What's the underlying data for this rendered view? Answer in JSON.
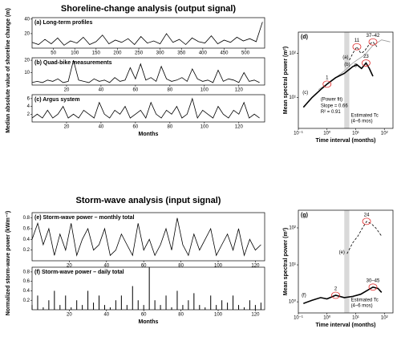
{
  "headings": [
    "Shoreline-change analysis (output  signal)",
    "Storm-wave analysis (input signal)"
  ],
  "shared_ylabels": [
    "Median absolute value of shoreline change (m)",
    "Normalized storm-wave power (kWm⁻¹)"
  ],
  "chart_data": [
    {
      "type": "line",
      "title": "(a) Long-term profiles",
      "xlim": [
        0,
        545
      ],
      "ylim": [
        0,
        42
      ],
      "xticks": [
        50,
        100,
        150,
        200,
        250,
        300,
        350,
        400,
        450,
        500
      ],
      "yticks": [
        20,
        40
      ],
      "series": [
        {
          "color": "#000000",
          "x": [
            0,
            15,
            30,
            45,
            60,
            75,
            90,
            105,
            120,
            135,
            150,
            165,
            180,
            195,
            210,
            225,
            240,
            255,
            270,
            285,
            300,
            315,
            330,
            345,
            360,
            375,
            390,
            405,
            420,
            435,
            450,
            465,
            480,
            495,
            510,
            525,
            540
          ],
          "values": [
            8,
            5,
            12,
            6,
            14,
            4,
            10,
            7,
            15,
            5,
            9,
            18,
            6,
            11,
            8,
            13,
            5,
            16,
            7,
            10,
            6,
            20,
            8,
            12,
            5,
            14,
            9,
            7,
            17,
            6,
            11,
            8,
            15,
            10,
            13,
            9,
            36
          ]
        }
      ]
    },
    {
      "type": "line",
      "title": "(b) Quad-bike measurements",
      "xlim": [
        0,
        135
      ],
      "ylim": [
        0,
        22
      ],
      "xticks": [
        20,
        40,
        60,
        80,
        100,
        120
      ],
      "yticks": [
        10,
        20
      ],
      "series": [
        {
          "color": "#000000",
          "x": [
            0,
            3,
            6,
            9,
            12,
            15,
            18,
            21,
            24,
            27,
            30,
            33,
            36,
            39,
            42,
            45,
            48,
            51,
            54,
            57,
            60,
            63,
            66,
            69,
            72,
            75,
            78,
            81,
            84,
            87,
            90,
            93,
            96,
            99,
            102,
            105,
            108,
            111,
            114,
            117,
            120,
            123,
            126,
            129,
            132
          ],
          "values": [
            2,
            3,
            2,
            4,
            3,
            5,
            2,
            3,
            20,
            4,
            3,
            2,
            5,
            3,
            4,
            2,
            6,
            3,
            4,
            14,
            5,
            17,
            4,
            6,
            3,
            15,
            5,
            3,
            4,
            6,
            3,
            13,
            5,
            3,
            4,
            2,
            12,
            3,
            5,
            4,
            2,
            10,
            3,
            4,
            2
          ]
        }
      ]
    },
    {
      "type": "line",
      "title": "(c) Argus system",
      "xlim": [
        0,
        135
      ],
      "ylim": [
        0,
        7
      ],
      "xlabel": "Months",
      "xticks": [
        20,
        40,
        60,
        80,
        100,
        120
      ],
      "yticks": [
        2,
        4,
        6
      ],
      "series": [
        {
          "color": "#000000",
          "x": [
            0,
            3,
            6,
            9,
            12,
            15,
            18,
            21,
            24,
            27,
            30,
            33,
            36,
            39,
            42,
            45,
            48,
            51,
            54,
            57,
            60,
            63,
            66,
            69,
            72,
            75,
            78,
            81,
            84,
            87,
            90,
            93,
            96,
            99,
            102,
            105,
            108,
            111,
            114,
            117,
            120,
            123,
            126,
            129,
            132
          ],
          "values": [
            1,
            2,
            1,
            3,
            1,
            2,
            4,
            1,
            2,
            1,
            3,
            2,
            1,
            5,
            2,
            1,
            3,
            2,
            4,
            1,
            2,
            3,
            1,
            5,
            2,
            1,
            3,
            2,
            4,
            1,
            2,
            6,
            1,
            3,
            2,
            1,
            4,
            2,
            1,
            3,
            2,
            5,
            1,
            2,
            1
          ]
        }
      ]
    },
    {
      "type": "line",
      "log": true,
      "title": "(d)",
      "xlabel": "Time interval (months)",
      "ylabel": "Mean spectral power (m²)",
      "xlim": [
        0.1,
        200
      ],
      "ylim": [
        2,
        300
      ],
      "xticks": [
        {
          "value": 0.1,
          "label": "10⁻¹"
        },
        {
          "value": 1,
          "label": "10⁰"
        },
        {
          "value": 10,
          "label": "10¹"
        },
        {
          "value": 100,
          "label": "10²"
        }
      ],
      "yticks": [
        {
          "value": 10,
          "label": "10¹"
        },
        {
          "value": 100,
          "label": "10²"
        }
      ],
      "band": [
        4,
        6
      ],
      "band_labels": [
        "Estimated Tc",
        "(4–6 mos)"
      ],
      "series": [
        {
          "color": "#999999",
          "style": "solid",
          "x": [
            0.5,
            1,
            2,
            4,
            8,
            11,
            20,
            40,
            80,
            160
          ],
          "values": [
            15,
            20,
            28,
            40,
            60,
            70,
            90,
            150,
            200,
            180
          ]
        },
        {
          "color": "#000000",
          "style": "dashed",
          "x": [
            6,
            8,
            11,
            15,
            20,
            30,
            40,
            55
          ],
          "values": [
            70,
            100,
            140,
            100,
            110,
            160,
            180,
            140
          ]
        },
        {
          "color": "#000000",
          "style": "thick",
          "x": [
            0.15,
            0.3,
            0.6,
            1,
            2,
            4,
            8,
            11,
            16,
            23,
            30,
            40
          ],
          "values": [
            6,
            10,
            15,
            20,
            28,
            35,
            50,
            55,
            45,
            60,
            45,
            30
          ]
        }
      ],
      "annotations": [
        {
          "text": "(a)",
          "x": 3.5,
          "y": 80,
          "circle": false
        },
        {
          "text": "(b)",
          "x": 4,
          "y": 55,
          "circle": false
        },
        {
          "text": "(c)",
          "x": 0.14,
          "y": 13,
          "circle": false
        },
        {
          "text": "1",
          "x": 1,
          "y": 20,
          "circle": true
        },
        {
          "text": "9",
          "x": 9,
          "y": 52,
          "circle": false
        },
        {
          "text": "11",
          "x": 11,
          "y": 140,
          "circle": true
        },
        {
          "text": "23",
          "x": 23,
          "y": 60,
          "circle": true
        },
        {
          "text": "37–42",
          "x": 40,
          "y": 180,
          "circle": true
        },
        {
          "text": "(Power fit)",
          "x": 0.6,
          "y": 9,
          "circle": false
        },
        {
          "text": "Slope = 0.66",
          "x": 0.6,
          "y": 6.5,
          "circle": false
        },
        {
          "text": "R² = 0.91",
          "x": 0.6,
          "y": 4.7,
          "circle": false
        }
      ]
    },
    {
      "type": "line",
      "title": "(e) Storm-wave power – monthly total",
      "xlim": [
        0,
        125
      ],
      "ylim": [
        0,
        0.9
      ],
      "xticks": [
        20,
        40,
        60,
        80,
        100,
        120
      ],
      "yticks": [
        0.2,
        0.4,
        0.6,
        0.8
      ],
      "series": [
        {
          "color": "#000000",
          "x": [
            0,
            3,
            6,
            9,
            12,
            15,
            18,
            21,
            24,
            27,
            30,
            33,
            36,
            39,
            42,
            45,
            48,
            51,
            54,
            57,
            60,
            63,
            66,
            69,
            72,
            75,
            78,
            81,
            84,
            87,
            90,
            93,
            96,
            99,
            102,
            105,
            108,
            111,
            114,
            117,
            120,
            123
          ],
          "values": [
            0.4,
            0.7,
            0.3,
            0.6,
            0.1,
            0.5,
            0.2,
            0.7,
            0.1,
            0.4,
            0.6,
            0.2,
            0.3,
            0.6,
            0.1,
            0.2,
            0.5,
            0.3,
            0.1,
            0.7,
            0.2,
            0.4,
            0.1,
            0.3,
            0.6,
            0.2,
            0.8,
            0.3,
            0.1,
            0.5,
            0.2,
            0.4,
            0.6,
            0.1,
            0.3,
            0.5,
            0.2,
            0.6,
            0.1,
            0.4,
            0.2,
            0.3
          ]
        }
      ]
    },
    {
      "type": "bar",
      "title": "(f) Storm-wave power – daily total",
      "xlim": [
        0,
        125
      ],
      "ylim": [
        0,
        0.9
      ],
      "xlabel": "Months",
      "xticks": [
        20,
        40,
        60,
        80,
        100,
        120
      ],
      "yticks": [
        0.2,
        0.4,
        0.6,
        0.8
      ],
      "series": [
        {
          "color": "#000000",
          "x": [
            0,
            3,
            6,
            9,
            12,
            15,
            18,
            21,
            24,
            27,
            30,
            33,
            36,
            39,
            42,
            45,
            48,
            51,
            54,
            57,
            60,
            63,
            66,
            69,
            72,
            75,
            78,
            81,
            84,
            87,
            90,
            93,
            96,
            99,
            102,
            105,
            108,
            111,
            114,
            117,
            120,
            123
          ],
          "values": [
            0.1,
            0.3,
            0.05,
            0.2,
            0.4,
            0.1,
            0.3,
            0.05,
            0.2,
            0.1,
            0.4,
            0.15,
            0.3,
            0.1,
            0.05,
            0.2,
            0.3,
            0.1,
            0.5,
            0.2,
            0.1,
            0.9,
            0.2,
            0.1,
            0.3,
            0.05,
            0.4,
            0.1,
            0.2,
            0.35,
            0.1,
            0.05,
            0.3,
            0.1,
            0.2,
            0.15,
            0.3,
            0.1,
            0.05,
            0.2,
            0.1,
            0.15
          ]
        }
      ]
    },
    {
      "type": "line",
      "log": true,
      "title": "(g)",
      "xlabel": "Time interval (months)",
      "ylabel": "Mean spectral power (m²)",
      "xlim": [
        0.1,
        200
      ],
      "ylim": [
        0.5,
        300
      ],
      "xticks": [
        {
          "value": 0.1,
          "label": "10⁻¹"
        },
        {
          "value": 1,
          "label": "10⁰"
        },
        {
          "value": 10,
          "label": "10¹"
        },
        {
          "value": 100,
          "label": "10²"
        }
      ],
      "yticks": [
        {
          "value": 1,
          "label": "10⁰"
        },
        {
          "value": 10,
          "label": "10¹"
        },
        {
          "value": 100,
          "label": "10²"
        }
      ],
      "band": [
        4,
        6
      ],
      "band_labels": [
        "Estimated Tc",
        "(4–6 mos)"
      ],
      "series": [
        {
          "color": "#000000",
          "style": "dashed",
          "x": [
            5,
            8,
            12,
            16,
            24,
            35,
            50,
            80
          ],
          "values": [
            20,
            40,
            60,
            90,
            150,
            130,
            100,
            60
          ]
        },
        {
          "color": "#000000",
          "style": "thick",
          "x": [
            0.15,
            0.3,
            0.6,
            1,
            2,
            4,
            8,
            15,
            30,
            40,
            60,
            80
          ],
          "values": [
            0.9,
            1.1,
            1.3,
            1.2,
            1.5,
            1.3,
            1.4,
            1.6,
            2.2,
            2.5,
            2.3,
            1.8
          ]
        }
      ],
      "annotations": [
        {
          "text": "(e)",
          "x": 2.6,
          "y": 22,
          "circle": false
        },
        {
          "text": "(f)",
          "x": 0.13,
          "y": 1.5,
          "circle": false
        },
        {
          "text": "2",
          "x": 2,
          "y": 1.5,
          "circle": true
        },
        {
          "text": "24",
          "x": 24,
          "y": 150,
          "circle": true
        },
        {
          "text": "30–45",
          "x": 40,
          "y": 2.5,
          "circle": true
        }
      ]
    }
  ]
}
